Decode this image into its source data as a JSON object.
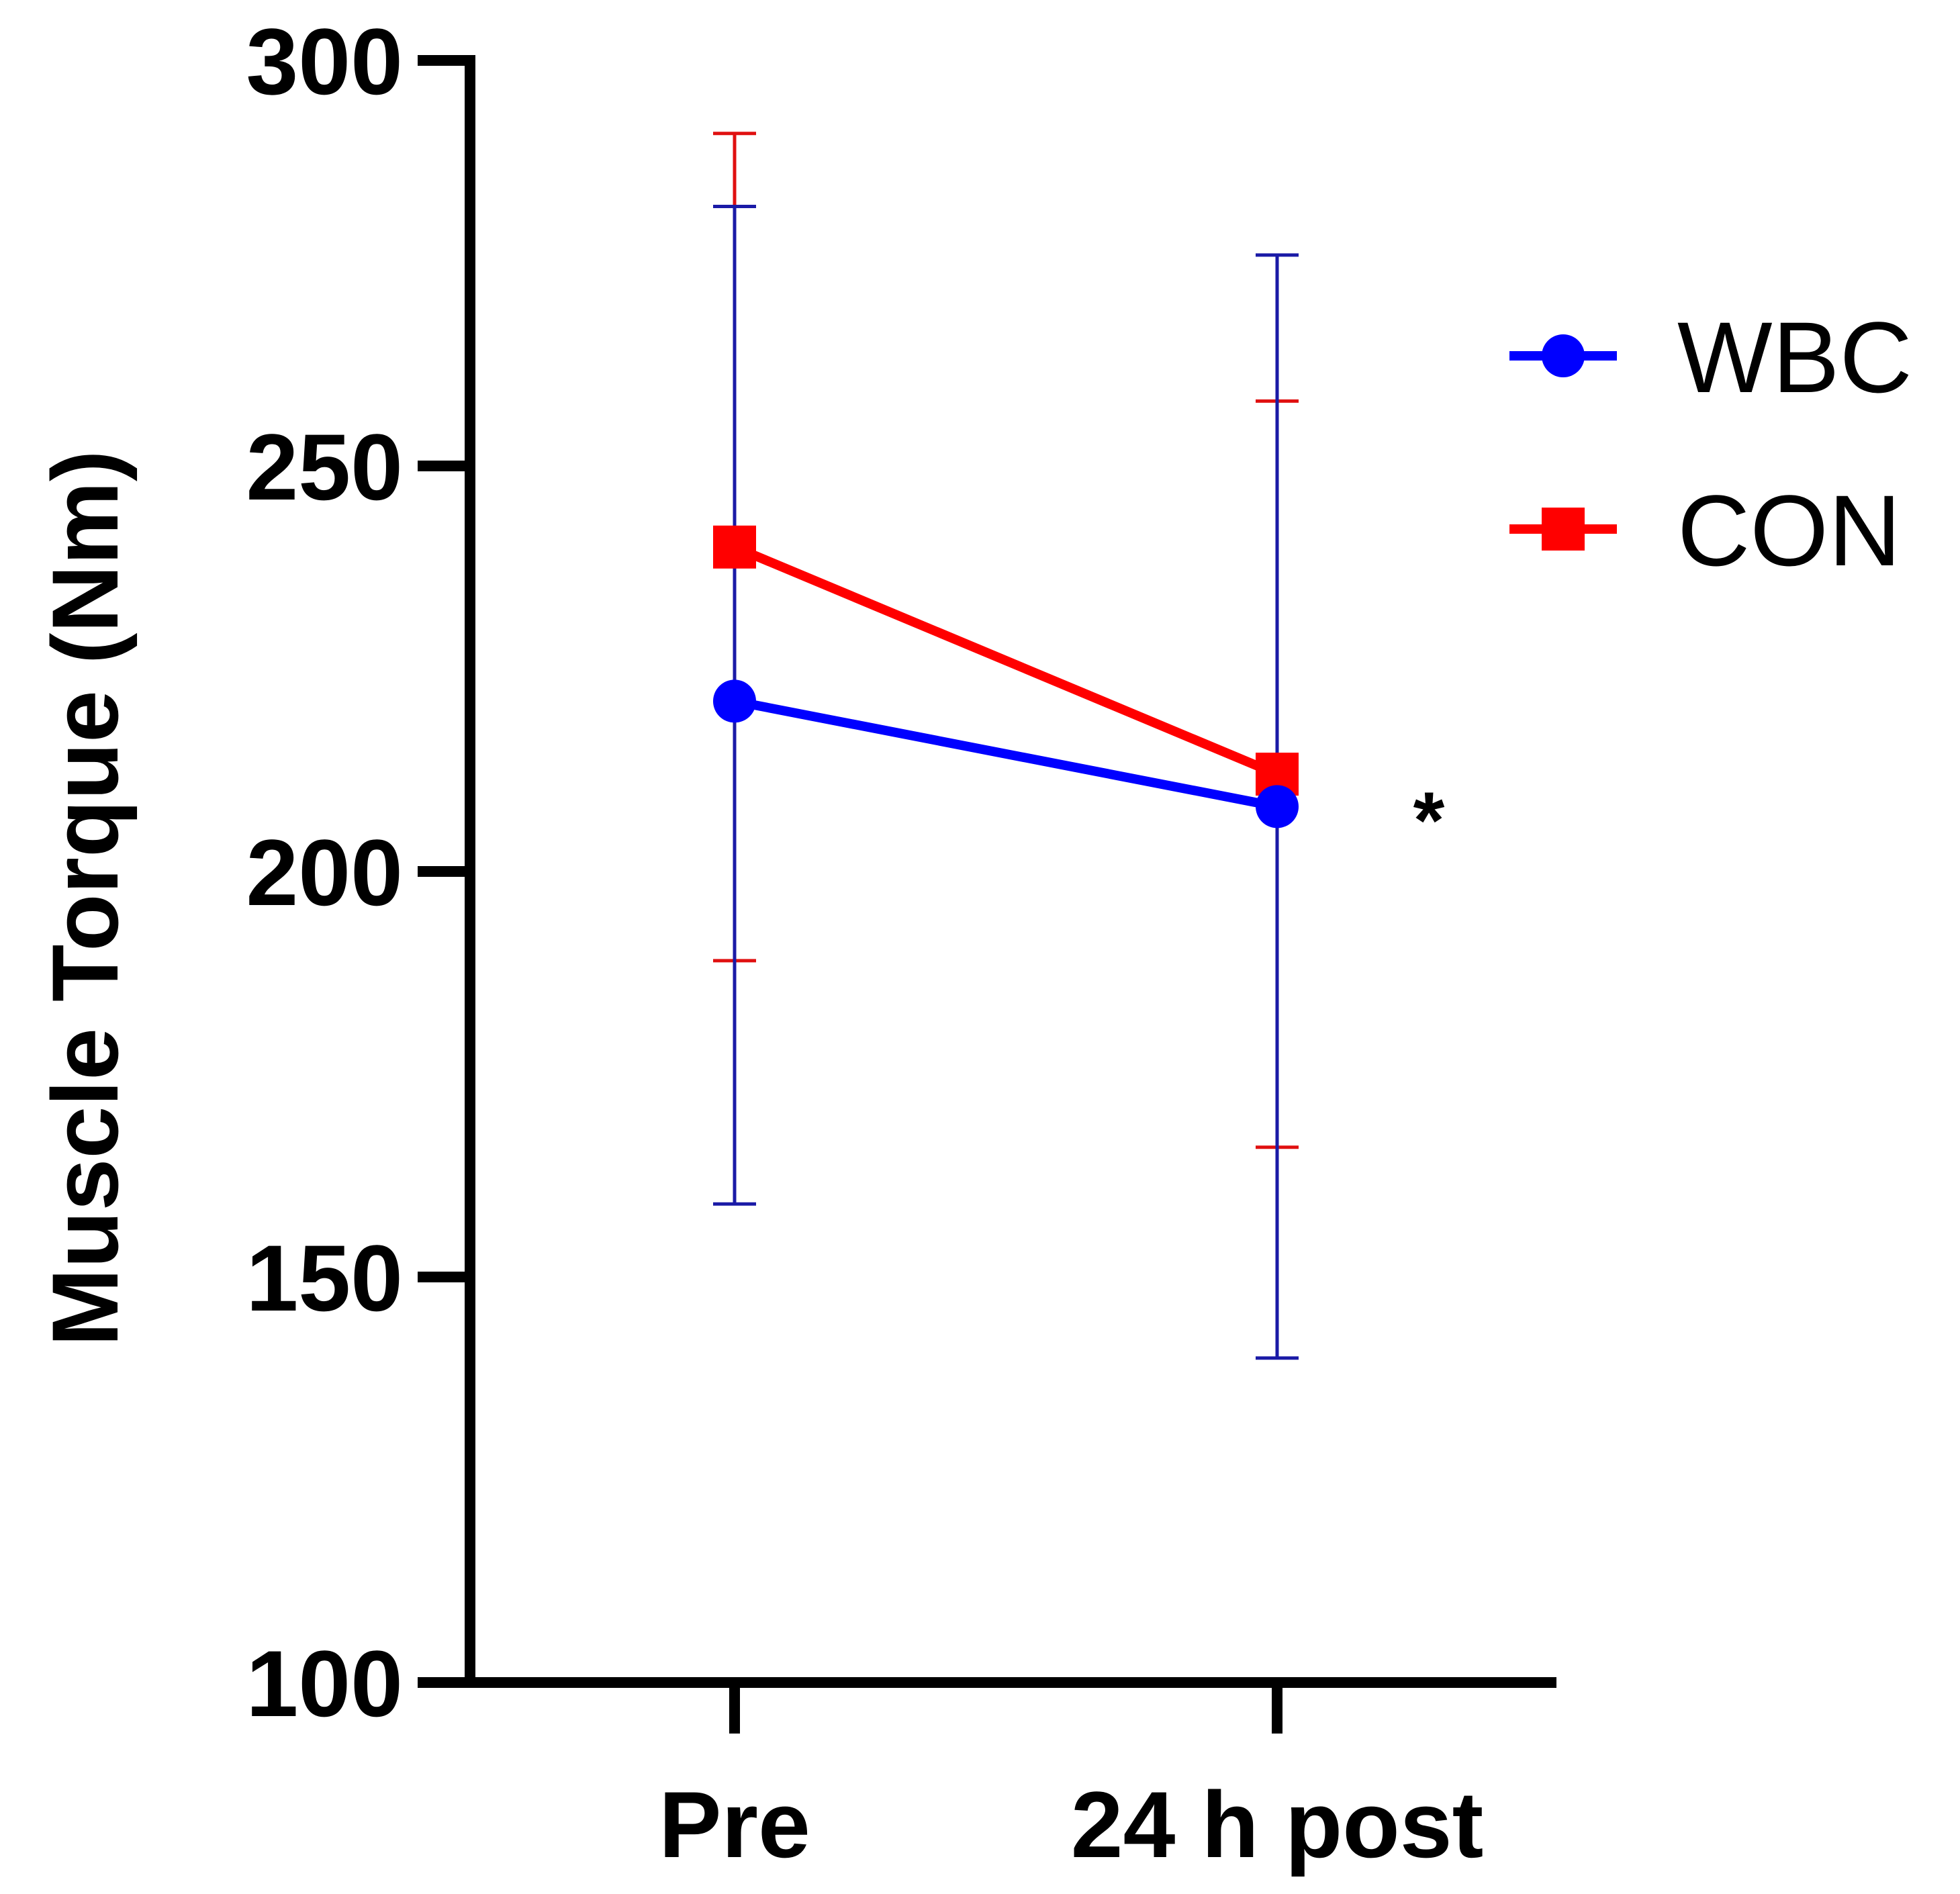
{
  "chart_data": {
    "type": "line",
    "title": "",
    "xlabel": "",
    "ylabel": "Muscle Torque (Nm)",
    "categories": [
      "Pre",
      "24 h post"
    ],
    "ylim": [
      100,
      300
    ],
    "yticks": [
      100,
      150,
      200,
      250,
      300
    ],
    "ytick_labels": [
      "100",
      "150",
      "200",
      "250",
      "300"
    ],
    "grid": false,
    "legend_position": "top-right",
    "series": [
      {
        "name": "WBC",
        "color": "#0000ff",
        "errorbar_color": "#1a1aa6",
        "marker": "circle",
        "values": [
          221,
          208
        ],
        "error_upper": [
          282,
          276
        ],
        "error_lower": [
          159,
          140
        ]
      },
      {
        "name": "CON",
        "color": "#ff0000",
        "errorbar_color": "#e01010",
        "marker": "square",
        "values": [
          240,
          212
        ],
        "error_upper": [
          291,
          258
        ],
        "error_lower": [
          189,
          166
        ]
      }
    ],
    "annotations": [
      {
        "text": "*",
        "near_category": "24 h post"
      }
    ]
  }
}
